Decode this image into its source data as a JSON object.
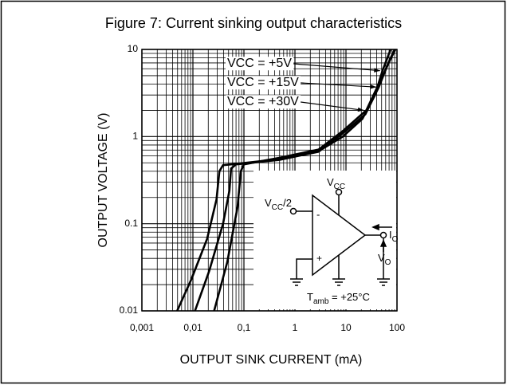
{
  "chart_data": {
    "type": "line",
    "title": "Figure 7: Current sinking output characteristics",
    "x_label": "OUTPUT SINK CURRENT (mA)",
    "y_label": "OUTPUT VOLTAGE (V)",
    "log_x": true,
    "log_y": true,
    "grid": true,
    "xlim": [
      0.001,
      100
    ],
    "ylim": [
      0.01,
      10
    ],
    "xticks": [
      {
        "value": 0.001,
        "label": "0,001"
      },
      {
        "value": 0.01,
        "label": "0,01"
      },
      {
        "value": 0.1,
        "label": "0,1"
      },
      1,
      10,
      100
    ],
    "yticks": [
      0.01,
      0.1,
      1,
      10
    ],
    "series": [
      {
        "name": "VCC = +5V",
        "color": "#000000",
        "x": [
          0.0049,
          0.0093,
          0.019,
          0.029,
          0.033,
          0.039,
          0.081,
          0.49,
          2.9,
          8.7,
          21,
          37,
          52,
          75
        ],
        "values": [
          0.01,
          0.023,
          0.067,
          0.19,
          0.4,
          0.47,
          0.49,
          0.55,
          0.68,
          1,
          1.6,
          3.0,
          5.7,
          10
        ]
      },
      {
        "name": "VCC = +15V",
        "color": "#000000",
        "x": [
          0.011,
          0.021,
          0.039,
          0.052,
          0.056,
          0.07,
          0.49,
          2.9,
          8.7,
          24,
          44,
          67,
          90
        ],
        "values": [
          0.01,
          0.029,
          0.1,
          0.24,
          0.43,
          0.48,
          0.54,
          0.67,
          1.09,
          1.8,
          3.7,
          6.9,
          10
        ]
      },
      {
        "name": "VCC = +30V",
        "color": "#000000",
        "x": [
          0.026,
          0.047,
          0.075,
          0.087,
          0.1,
          0.49,
          2.9,
          8.7,
          25,
          49,
          75,
          93
        ],
        "values": [
          0.01,
          0.036,
          0.156,
          0.4,
          0.48,
          0.57,
          0.71,
          1.16,
          2.0,
          4.6,
          7.8,
          10
        ]
      }
    ],
    "inset": {
      "vcc": {
        "main": "V",
        "sub": "CC"
      },
      "vcc_half": {
        "main": "V",
        "sub": "CC",
        "tail": "/2"
      },
      "minus": "-",
      "plus": "+",
      "io": {
        "main": "I",
        "sub": "O"
      },
      "vo": {
        "main": "V",
        "sub": "O"
      },
      "tamb": {
        "main": "T",
        "sub": "amb",
        "tail": " = +25°C"
      }
    }
  }
}
